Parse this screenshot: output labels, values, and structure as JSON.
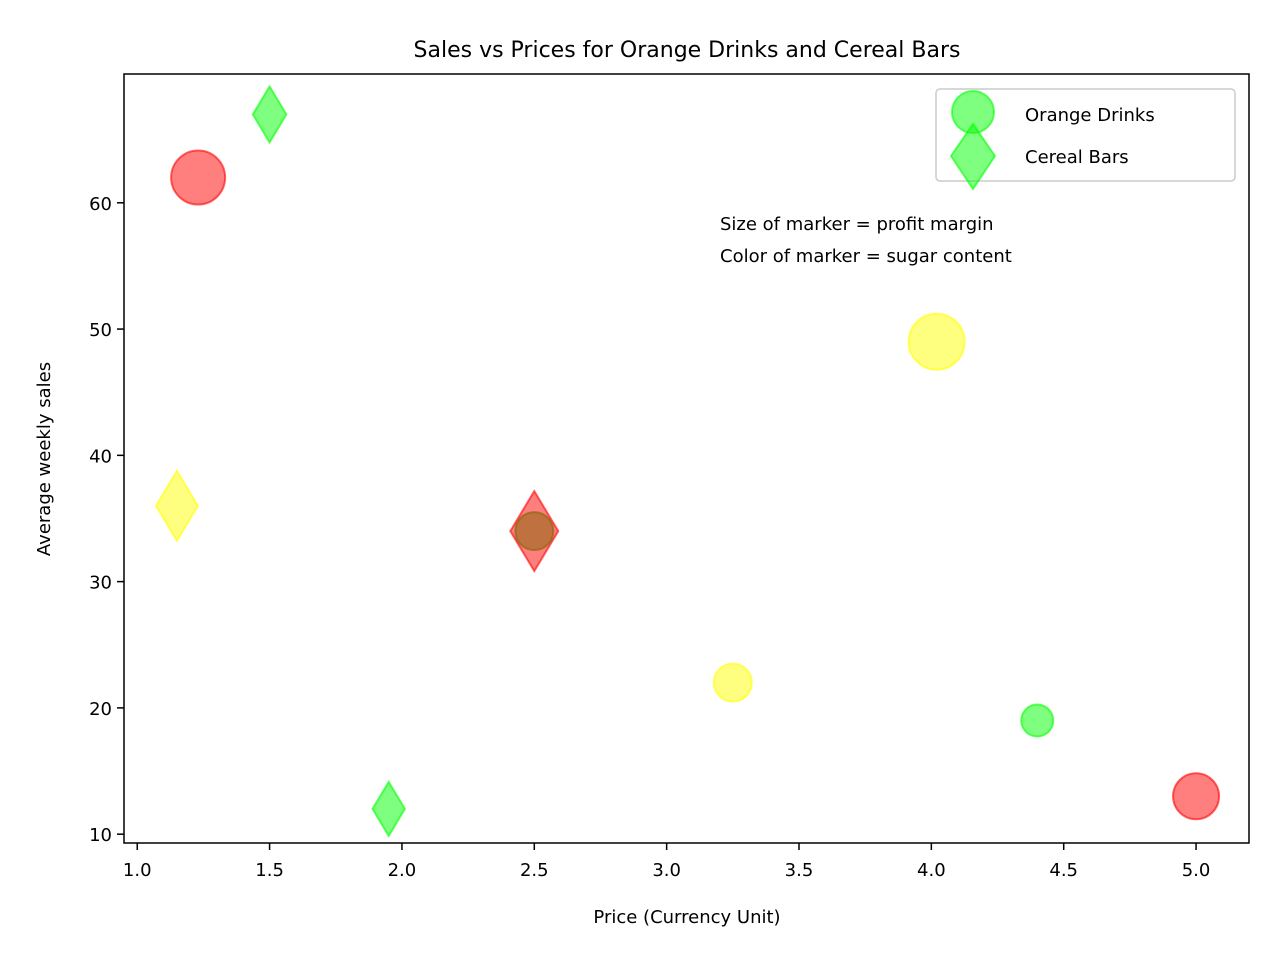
{
  "chart_data": {
    "type": "scatter",
    "title": "Sales vs Prices for Orange Drinks and Cereal Bars",
    "xlabel": "Price (Currency Unit)",
    "ylabel": "Average weekly sales",
    "xlim": [
      0.95,
      5.2
    ],
    "ylim": [
      9.3,
      70.2
    ],
    "xticks": [
      "1.0",
      "1.5",
      "2.0",
      "2.5",
      "3.0",
      "3.5",
      "4.0",
      "4.5",
      "5.0"
    ],
    "yticks": [
      "10",
      "20",
      "30",
      "40",
      "50",
      "60"
    ],
    "grid": false,
    "legend_position": "top-right",
    "annotation": [
      "Size of marker = profit margin",
      "Color of marker = sugar content"
    ],
    "series": [
      {
        "name": "Orange Drinks",
        "marker": "circle",
        "legend_color": "#00ff00",
        "points": [
          {
            "x": 1.23,
            "y": 62,
            "color": "#ff0000",
            "size": 27
          },
          {
            "x": 2.5,
            "y": 34,
            "color": "#806600",
            "size": 19
          },
          {
            "x": 4.02,
            "y": 49,
            "color": "#ffff00",
            "size": 28
          },
          {
            "x": 3.25,
            "y": 22,
            "color": "#ffff00",
            "size": 19
          },
          {
            "x": 4.4,
            "y": 19,
            "color": "#00ff00",
            "size": 16
          },
          {
            "x": 5.0,
            "y": 13,
            "color": "#ff0000",
            "size": 23
          }
        ]
      },
      {
        "name": "Cereal Bars",
        "marker": "diamond",
        "legend_color": "#00ff00",
        "points": [
          {
            "x": 1.5,
            "y": 67,
            "color": "#00ff00",
            "size": 28
          },
          {
            "x": 1.15,
            "y": 36,
            "color": "#ffff00",
            "size": 35
          },
          {
            "x": 2.5,
            "y": 34,
            "color": "#ff0000",
            "size": 40
          },
          {
            "x": 1.95,
            "y": 12,
            "color": "#00ff00",
            "size": 27
          }
        ]
      }
    ]
  }
}
